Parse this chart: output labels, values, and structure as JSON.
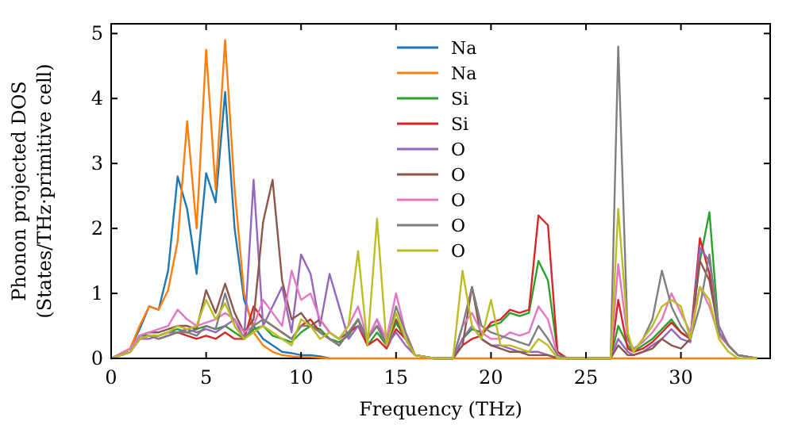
{
  "chart_data": {
    "type": "line",
    "xlabel": "Frequency (THz)",
    "ylabel": "Phonon projected DOS\n(States/THz·primitive cell)",
    "x": [
      0,
      1,
      1.5,
      2,
      2.5,
      3,
      3.5,
      4,
      4.5,
      5,
      5.5,
      6,
      6.5,
      7,
      7.5,
      8,
      8.5,
      9,
      9.5,
      10,
      10.5,
      11,
      11.5,
      12,
      12.5,
      13,
      13.5,
      14,
      14.5,
      15,
      15.5,
      16,
      17,
      18,
      18.5,
      19,
      19.5,
      20,
      20.5,
      21,
      21.5,
      22,
      22.5,
      23,
      23.5,
      24,
      26.3,
      26.7,
      27.2,
      27.5,
      28,
      28.5,
      29,
      29.5,
      30,
      30.5,
      31,
      31.5,
      32,
      32.5,
      33,
      34
    ],
    "xlim": [
      0,
      34.7
    ],
    "xticks": [
      0,
      5,
      10,
      15,
      20,
      25,
      30
    ],
    "ylim": [
      0,
      5.15
    ],
    "yticks": [
      0,
      1,
      2,
      3,
      4,
      5
    ],
    "grid": false,
    "legend": "top",
    "line_style": "solid",
    "marker": "none",
    "series": [
      {
        "name": "Na",
        "color": "#1f77b4",
        "values": [
          0,
          0.15,
          0.45,
          0.8,
          0.75,
          1.35,
          2.8,
          2.3,
          1.3,
          2.85,
          2.4,
          4.1,
          2.0,
          0.9,
          0.5,
          0.3,
          0.2,
          0.1,
          0.08,
          0.05,
          0.05,
          0.03,
          0,
          null,
          null,
          null,
          null,
          null,
          null,
          null,
          null,
          null,
          null,
          null,
          null,
          null,
          null,
          null,
          null,
          null,
          null,
          null,
          null,
          null,
          null,
          null,
          null,
          null,
          null,
          null,
          null,
          null,
          null,
          null,
          null,
          null,
          null,
          null,
          null,
          null,
          null,
          null
        ]
      },
      {
        "name": "Na",
        "color": "#ff7f0e",
        "values": [
          0,
          0.15,
          0.5,
          0.8,
          0.75,
          1.05,
          1.8,
          3.65,
          2.0,
          4.75,
          2.6,
          4.9,
          2.6,
          1.0,
          0.4,
          0.2,
          0.1,
          0.05,
          0.03,
          0.02,
          0.02,
          0.01,
          0,
          0,
          0,
          0,
          0,
          0,
          0,
          0,
          0,
          0,
          0,
          0,
          0,
          0,
          0,
          0,
          0,
          0,
          0,
          0,
          0,
          0,
          0,
          0,
          0,
          0,
          0,
          0,
          0,
          0,
          0,
          0,
          0,
          0,
          0,
          0,
          0,
          0,
          0,
          0
        ]
      },
      {
        "name": "Si",
        "color": "#2ca02c",
        "values": [
          0,
          0.1,
          0.35,
          0.35,
          0.35,
          0.4,
          0.45,
          0.4,
          0.45,
          0.5,
          0.45,
          0.5,
          0.4,
          0.3,
          0.45,
          0.5,
          0.35,
          0.3,
          0.25,
          0.4,
          0.5,
          0.45,
          0.3,
          0.25,
          0.35,
          0.6,
          0.2,
          0.4,
          0.2,
          0.55,
          0.3,
          0.05,
          0,
          0,
          0.3,
          0.45,
          0.4,
          0.5,
          0.55,
          0.7,
          0.65,
          0.7,
          1.5,
          1.2,
          0.1,
          0,
          0,
          0.5,
          0.2,
          0.1,
          0.2,
          0.3,
          0.45,
          0.6,
          0.4,
          0.3,
          1.5,
          2.25,
          0.4,
          0.2,
          null,
          null
        ]
      },
      {
        "name": "Si",
        "color": "#d62728",
        "values": [
          0,
          0.1,
          0.3,
          0.35,
          0.3,
          0.35,
          0.4,
          0.35,
          0.3,
          0.35,
          0.3,
          0.4,
          0.3,
          0.3,
          0.8,
          0.6,
          0.5,
          0.4,
          0.3,
          0.5,
          0.6,
          0.4,
          0.3,
          0.2,
          0.4,
          0.5,
          0.2,
          0.3,
          0.15,
          0.45,
          0.3,
          0.05,
          0,
          0,
          0.2,
          0.3,
          0.35,
          0.55,
          0.6,
          0.75,
          0.7,
          0.75,
          2.2,
          2.05,
          0.1,
          0,
          0,
          0.9,
          0.15,
          0.1,
          0.15,
          0.25,
          0.4,
          0.55,
          0.4,
          0.3,
          1.85,
          1.3,
          0.4,
          0.2,
          0.05,
          0
        ]
      },
      {
        "name": "O",
        "color": "#9467bd",
        "values": [
          0,
          0.1,
          0.3,
          0.3,
          0.35,
          0.4,
          0.4,
          0.45,
          0.4,
          0.45,
          0.4,
          0.5,
          0.6,
          0.3,
          2.75,
          0.5,
          0.8,
          1.1,
          0.4,
          1.6,
          1.3,
          0.5,
          1.3,
          0.8,
          0.3,
          0.5,
          0.3,
          0.6,
          0.2,
          0.4,
          0.2,
          0.05,
          0,
          0,
          0.3,
          0.5,
          0.3,
          0.2,
          0.2,
          0.15,
          0.1,
          0.1,
          0.1,
          0.05,
          0,
          0,
          0,
          0.3,
          0.1,
          0.05,
          0.1,
          0.2,
          0.3,
          0.45,
          0.3,
          0.25,
          1.7,
          1.5,
          0.5,
          0.2,
          0.05,
          0
        ]
      },
      {
        "name": "O",
        "color": "#8c564b",
        "values": [
          0,
          0.1,
          0.35,
          0.4,
          0.4,
          0.45,
          0.5,
          0.5,
          0.45,
          1.05,
          0.7,
          1.15,
          0.7,
          0.4,
          0.6,
          2.1,
          2.75,
          1.2,
          0.6,
          0.7,
          0.5,
          0.6,
          0.4,
          0.3,
          0.4,
          0.6,
          0.3,
          0.5,
          0.2,
          0.6,
          0.3,
          0.05,
          0,
          0,
          0.2,
          1.1,
          0.3,
          0.2,
          0.15,
          0.1,
          0.1,
          0.05,
          0.05,
          0.05,
          0,
          0,
          0,
          0.2,
          0.05,
          0.05,
          0.1,
          0.15,
          0.3,
          0.2,
          0.15,
          0.3,
          1.5,
          1.2,
          0.4,
          0.2,
          0.05,
          0
        ]
      },
      {
        "name": "O",
        "color": "#e377c2",
        "values": [
          0,
          0.15,
          0.35,
          0.4,
          0.45,
          0.5,
          0.75,
          0.6,
          0.5,
          0.55,
          0.6,
          0.7,
          0.6,
          0.4,
          0.5,
          0.9,
          0.7,
          0.5,
          1.35,
          0.9,
          1.0,
          0.6,
          0.4,
          0.3,
          0.5,
          0.8,
          0.3,
          0.6,
          0.3,
          1.0,
          0.4,
          0.05,
          0,
          0,
          0.5,
          0.7,
          0.4,
          0.3,
          0.3,
          0.4,
          0.35,
          0.4,
          0.8,
          0.6,
          0.05,
          0,
          0,
          1.45,
          0.3,
          0.15,
          0.25,
          0.4,
          0.6,
          1.0,
          0.7,
          0.4,
          1.1,
          0.8,
          0.35,
          0.2,
          0.05,
          0
        ]
      },
      {
        "name": "O",
        "color": "#7f7f7f",
        "values": [
          0,
          0.1,
          0.3,
          0.35,
          0.3,
          0.35,
          0.4,
          0.4,
          0.35,
          0.5,
          0.45,
          1.0,
          0.5,
          0.3,
          0.5,
          0.6,
          0.5,
          0.4,
          0.3,
          0.5,
          0.5,
          0.4,
          0.3,
          0.2,
          0.4,
          0.6,
          0.3,
          0.5,
          0.2,
          0.8,
          0.4,
          0.05,
          0,
          0,
          0.5,
          1.1,
          0.5,
          0.4,
          0.35,
          0.3,
          0.25,
          0.2,
          0.5,
          0.3,
          0.05,
          0,
          0,
          4.8,
          0.3,
          0.1,
          0.3,
          0.6,
          1.35,
          0.8,
          0.5,
          0.3,
          0.8,
          1.6,
          0.4,
          0.2,
          0.05,
          0
        ]
      },
      {
        "name": "O",
        "color": "#bcbd22",
        "values": [
          0,
          0.1,
          0.3,
          0.35,
          0.35,
          0.4,
          0.5,
          0.45,
          0.5,
          0.9,
          0.6,
          0.85,
          0.5,
          0.3,
          0.4,
          0.5,
          0.4,
          0.3,
          0.2,
          0.6,
          0.5,
          0.3,
          0.4,
          0.3,
          0.5,
          1.65,
          0.2,
          2.15,
          0.2,
          0.7,
          0.3,
          0.05,
          0,
          0,
          1.35,
          0.5,
          0.3,
          0.9,
          0.2,
          0.2,
          0.15,
          0.1,
          0.3,
          0.2,
          0,
          0,
          0,
          2.3,
          0.4,
          0.1,
          0.3,
          0.5,
          0.8,
          0.9,
          0.8,
          0.3,
          1.1,
          0.9,
          0.3,
          0.1,
          0,
          0
        ]
      }
    ]
  }
}
